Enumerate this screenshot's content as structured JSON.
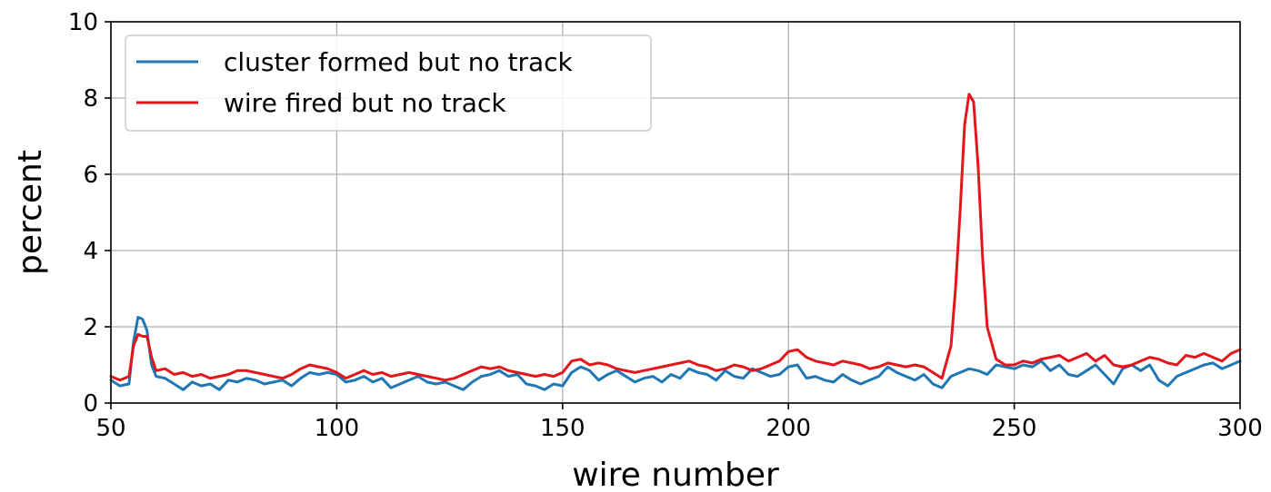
{
  "chart_data": {
    "type": "line",
    "title": "",
    "xlabel": "wire number",
    "ylabel": "percent",
    "xlim": [
      50,
      300
    ],
    "ylim": [
      0,
      10
    ],
    "xticks": [
      50,
      100,
      150,
      200,
      250,
      300
    ],
    "yticks": [
      0,
      2,
      4,
      6,
      8,
      10
    ],
    "grid": true,
    "legend_position": "top-left",
    "series": [
      {
        "name": "cluster formed but no track",
        "color": "#1f77b4",
        "x": [
          50,
          52,
          54,
          55,
          56,
          57,
          58,
          59,
          60,
          62,
          64,
          66,
          68,
          70,
          72,
          74,
          76,
          78,
          80,
          82,
          84,
          86,
          88,
          90,
          92,
          94,
          96,
          98,
          100,
          102,
          104,
          106,
          108,
          110,
          112,
          114,
          116,
          118,
          120,
          122,
          124,
          126,
          128,
          130,
          132,
          134,
          136,
          138,
          140,
          142,
          144,
          146,
          148,
          150,
          152,
          154,
          156,
          158,
          160,
          162,
          164,
          166,
          168,
          170,
          172,
          174,
          176,
          178,
          180,
          182,
          184,
          186,
          188,
          190,
          192,
          194,
          196,
          198,
          200,
          202,
          204,
          206,
          208,
          210,
          212,
          214,
          216,
          218,
          220,
          222,
          224,
          226,
          228,
          230,
          232,
          234,
          236,
          238,
          240,
          242,
          244,
          246,
          248,
          250,
          252,
          254,
          256,
          258,
          260,
          262,
          264,
          266,
          268,
          270,
          272,
          274,
          276,
          278,
          280,
          282,
          284,
          286,
          288,
          290,
          292,
          294,
          296,
          298,
          300
        ],
        "values": [
          0.6,
          0.45,
          0.5,
          1.6,
          2.25,
          2.2,
          1.9,
          1.0,
          0.7,
          0.65,
          0.5,
          0.35,
          0.55,
          0.45,
          0.5,
          0.35,
          0.6,
          0.55,
          0.65,
          0.6,
          0.5,
          0.55,
          0.6,
          0.45,
          0.65,
          0.8,
          0.75,
          0.8,
          0.75,
          0.55,
          0.6,
          0.7,
          0.55,
          0.65,
          0.4,
          0.5,
          0.6,
          0.7,
          0.55,
          0.5,
          0.55,
          0.45,
          0.35,
          0.55,
          0.7,
          0.75,
          0.85,
          0.7,
          0.75,
          0.5,
          0.45,
          0.35,
          0.5,
          0.45,
          0.8,
          0.95,
          0.85,
          0.6,
          0.75,
          0.85,
          0.7,
          0.55,
          0.65,
          0.7,
          0.55,
          0.75,
          0.65,
          0.9,
          0.8,
          0.75,
          0.6,
          0.85,
          0.7,
          0.65,
          0.9,
          0.8,
          0.7,
          0.75,
          0.95,
          1.0,
          0.65,
          0.7,
          0.6,
          0.55,
          0.75,
          0.6,
          0.5,
          0.6,
          0.7,
          0.95,
          0.8,
          0.7,
          0.6,
          0.75,
          0.5,
          0.4,
          0.7,
          0.8,
          0.9,
          0.85,
          0.75,
          1.0,
          0.95,
          0.9,
          1.0,
          0.95,
          1.1,
          0.85,
          1.0,
          0.75,
          0.7,
          0.85,
          1.0,
          0.75,
          0.5,
          0.9,
          1.0,
          0.85,
          1.0,
          0.6,
          0.45,
          0.7,
          0.8,
          0.9,
          1.0,
          1.05,
          0.9,
          1.0,
          1.1
        ]
      },
      {
        "name": "wire fired but no track",
        "color": "#e3161b",
        "x": [
          50,
          52,
          54,
          55,
          56,
          57,
          58,
          59,
          60,
          62,
          64,
          66,
          68,
          70,
          72,
          74,
          76,
          78,
          80,
          82,
          84,
          86,
          88,
          90,
          92,
          94,
          96,
          98,
          100,
          102,
          104,
          106,
          108,
          110,
          112,
          114,
          116,
          118,
          120,
          122,
          124,
          126,
          128,
          130,
          132,
          134,
          136,
          138,
          140,
          142,
          144,
          146,
          148,
          150,
          152,
          154,
          156,
          158,
          160,
          162,
          164,
          166,
          168,
          170,
          172,
          174,
          176,
          178,
          180,
          182,
          184,
          186,
          188,
          190,
          192,
          194,
          196,
          198,
          200,
          202,
          204,
          206,
          208,
          210,
          212,
          214,
          216,
          218,
          220,
          222,
          224,
          226,
          228,
          230,
          232,
          234,
          236,
          237,
          238,
          239,
          240,
          241,
          242,
          243,
          244,
          246,
          248,
          250,
          252,
          254,
          256,
          258,
          260,
          262,
          264,
          266,
          268,
          270,
          272,
          274,
          276,
          278,
          280,
          282,
          284,
          286,
          288,
          290,
          292,
          294,
          296,
          298,
          300
        ],
        "values": [
          0.7,
          0.6,
          0.7,
          1.5,
          1.8,
          1.75,
          1.75,
          1.2,
          0.85,
          0.9,
          0.75,
          0.8,
          0.7,
          0.75,
          0.65,
          0.7,
          0.75,
          0.85,
          0.85,
          0.8,
          0.75,
          0.7,
          0.65,
          0.75,
          0.9,
          1.0,
          0.95,
          0.9,
          0.8,
          0.65,
          0.75,
          0.85,
          0.75,
          0.8,
          0.7,
          0.75,
          0.8,
          0.75,
          0.7,
          0.65,
          0.6,
          0.65,
          0.75,
          0.85,
          0.95,
          0.9,
          0.95,
          0.85,
          0.8,
          0.75,
          0.7,
          0.75,
          0.7,
          0.8,
          1.1,
          1.15,
          1.0,
          1.05,
          1.0,
          0.9,
          0.85,
          0.8,
          0.85,
          0.9,
          0.95,
          1.0,
          1.05,
          1.1,
          1.0,
          0.95,
          0.85,
          0.9,
          1.0,
          0.95,
          0.85,
          0.9,
          1.0,
          1.1,
          1.35,
          1.4,
          1.2,
          1.1,
          1.05,
          1.0,
          1.1,
          1.05,
          1.0,
          0.9,
          0.95,
          1.05,
          1.0,
          0.95,
          1.0,
          0.95,
          0.8,
          0.65,
          1.5,
          3.0,
          5.0,
          7.3,
          8.1,
          7.9,
          6.2,
          3.8,
          2.0,
          1.15,
          1.0,
          1.0,
          1.1,
          1.05,
          1.15,
          1.2,
          1.25,
          1.1,
          1.2,
          1.3,
          1.1,
          1.25,
          1.0,
          0.95,
          1.0,
          1.1,
          1.2,
          1.15,
          1.05,
          1.0,
          1.25,
          1.2,
          1.3,
          1.2,
          1.1,
          1.3,
          1.4
        ]
      }
    ]
  }
}
